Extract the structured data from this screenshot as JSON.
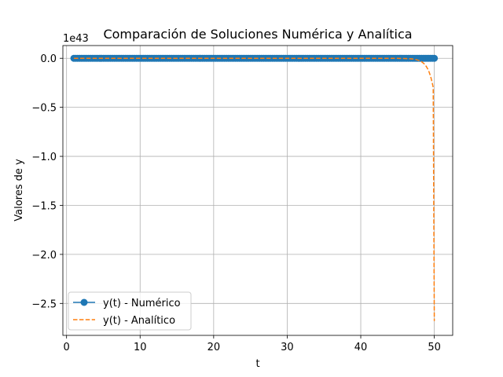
{
  "chart_data": {
    "type": "line",
    "title": "Comparación de Soluciones Numérica y Analítica",
    "xlabel": "t",
    "ylabel": "Valores de y",
    "offset_text": "1e43",
    "xlim": [
      -0.5,
      52.5
    ],
    "ylim": [
      -2.826,
      0.13
    ],
    "x_ticks": [
      0,
      10,
      20,
      30,
      40,
      50
    ],
    "x_tick_labels": [
      "0",
      "10",
      "20",
      "30",
      "40",
      "50"
    ],
    "y_ticks": [
      0.0,
      -0.5,
      -1.0,
      -1.5,
      -2.0,
      -2.5
    ],
    "y_tick_labels": [
      "0.0",
      "−0.5",
      "−1.0",
      "−1.5",
      "−2.0",
      "−2.5"
    ],
    "grid": true,
    "legend_position": "lower-left",
    "series": [
      {
        "name": "y(t) - Numérico",
        "color": "#1f77b4",
        "style": "solid-markers",
        "x_start": 1,
        "x_end": 50,
        "x_step": 0.25,
        "y_value": 0
      },
      {
        "name": "y(t) - Analítico",
        "color": "#ff7f0e",
        "style": "dashed",
        "x": [
          1,
          10,
          20,
          30,
          40,
          45,
          46,
          46.5,
          47,
          47.5,
          48,
          48.3,
          48.6,
          48.9,
          49.1,
          49.3,
          49.5,
          49.7,
          49.85,
          50
        ],
        "values": [
          0,
          0,
          0,
          0,
          0,
          -0.0005,
          -0.0019,
          -0.0034,
          -0.0066,
          -0.0127,
          -0.024,
          -0.0362,
          -0.0545,
          -0.082,
          -0.1077,
          -0.1411,
          -0.1855,
          -0.244,
          -0.297,
          -2.68
        ]
      }
    ]
  }
}
